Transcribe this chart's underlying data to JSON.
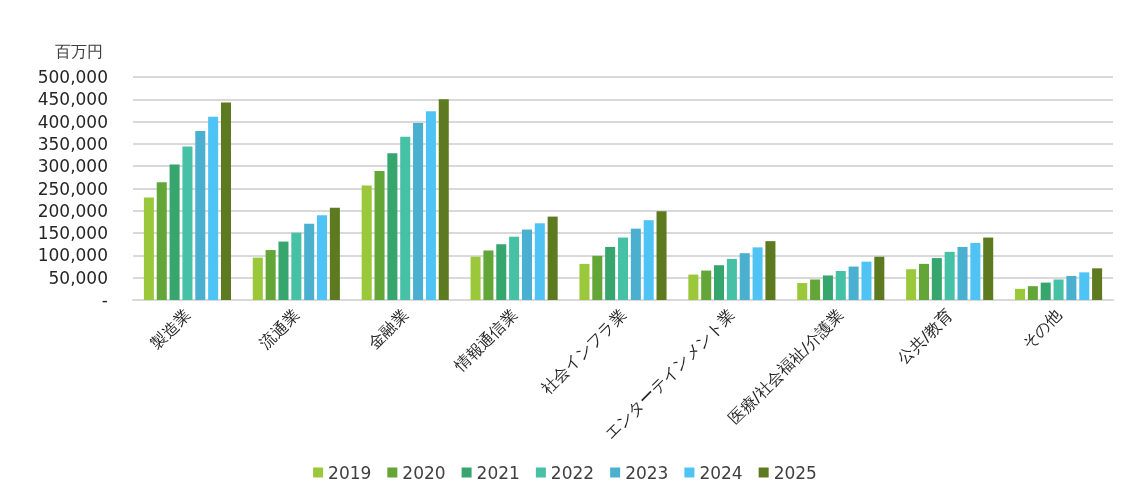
{
  "chart_data": {
    "type": "bar",
    "ylabel": "百万円",
    "categories": [
      "製造業",
      "流通業",
      "金融業",
      "情報通信業",
      "社会インフラ業",
      "エンターテインメント業",
      "医療/社会福祉/介護業",
      "公共/教育",
      "その他"
    ],
    "series": [
      {
        "name": "2019",
        "color": "#9bc83a",
        "values": [
          230000,
          95000,
          257000,
          97000,
          81000,
          57000,
          38000,
          69000,
          25000
        ]
      },
      {
        "name": "2020",
        "color": "#64a538",
        "values": [
          264000,
          112000,
          289000,
          111000,
          99000,
          66000,
          46000,
          81000,
          31000
        ]
      },
      {
        "name": "2021",
        "color": "#37a56e",
        "values": [
          304000,
          131000,
          329000,
          125000,
          119000,
          78000,
          55000,
          94000,
          39000
        ]
      },
      {
        "name": "2022",
        "color": "#46c1a5",
        "values": [
          344000,
          151000,
          366000,
          142000,
          140000,
          92000,
          65000,
          108000,
          46000
        ]
      },
      {
        "name": "2023",
        "color": "#4bafd0",
        "values": [
          379000,
          171000,
          397000,
          158000,
          160000,
          105000,
          75000,
          119000,
          54000
        ]
      },
      {
        "name": "2024",
        "color": "#50c3f5",
        "values": [
          411000,
          190000,
          423000,
          172000,
          179000,
          118000,
          86000,
          128000,
          62000
        ]
      },
      {
        "name": "2025",
        "color": "#5e7a20",
        "values": [
          443000,
          207000,
          450000,
          187000,
          199000,
          132000,
          97000,
          140000,
          71000
        ]
      }
    ],
    "ylim": [
      0,
      500000
    ],
    "yticks": [
      {
        "value": 0,
        "label": "-"
      },
      {
        "value": 50000,
        "label": "50,000"
      },
      {
        "value": 100000,
        "label": "100,000"
      },
      {
        "value": 150000,
        "label": "150,000"
      },
      {
        "value": 200000,
        "label": "200,000"
      },
      {
        "value": 250000,
        "label": "250,000"
      },
      {
        "value": 300000,
        "label": "300,000"
      },
      {
        "value": 350000,
        "label": "350,000"
      },
      {
        "value": 400000,
        "label": "400,000"
      },
      {
        "value": 450000,
        "label": "450,000"
      },
      {
        "value": 500000,
        "label": "500,000"
      }
    ],
    "grid": "y",
    "legend": "bottom"
  }
}
